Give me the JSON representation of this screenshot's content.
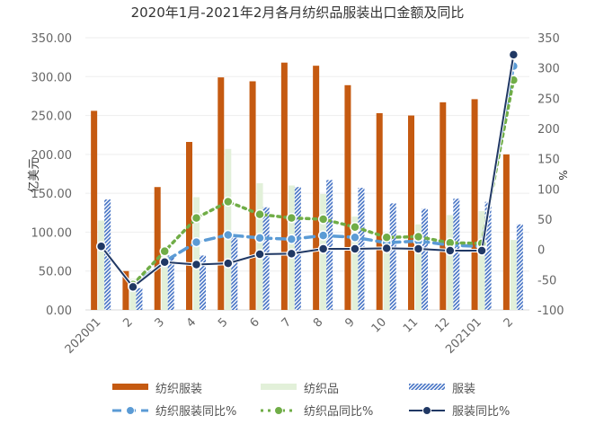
{
  "chart_data": {
    "type": "bar",
    "title": "2020年1月-2021年2月各月纺织品服装出口金额及同比",
    "ylabel": "亿美元",
    "y2label": "%",
    "ylim": [
      0,
      350
    ],
    "y2lim": [
      -100,
      350
    ],
    "yticks": [
      "0.00",
      "50.00",
      "100.00",
      "150.00",
      "200.00",
      "250.00",
      "300.00",
      "350.00"
    ],
    "y2ticks": [
      "-100",
      "-50",
      "0",
      "50",
      "100",
      "150",
      "200",
      "250",
      "300",
      "350"
    ],
    "categories": [
      "202001",
      "2",
      "3",
      "4",
      "5",
      "6",
      "7",
      "8",
      "9",
      "10",
      "11",
      "12",
      "202101",
      "2"
    ],
    "bars": [
      {
        "name": "纺织服装",
        "color": "#C55A11",
        "values": [
          256,
          50,
          158,
          216,
          299,
          294,
          318,
          314,
          289,
          253,
          250,
          267,
          271,
          200
        ]
      },
      {
        "name": "纺织品",
        "color": "#E2F0D9",
        "values": [
          115,
          40,
          70,
          145,
          207,
          163,
          160,
          149,
          120,
          100,
          110,
          122,
          127,
          90
        ]
      },
      {
        "name": "服装",
        "color": "#4472C4",
        "values": [
          142,
          28,
          70,
          70,
          93,
          132,
          158,
          167,
          157,
          137,
          130,
          143,
          139,
          110
        ]
      }
    ],
    "lines": [
      {
        "name": "纺织服装同比%",
        "color": "#5B9BD5",
        "style": "dashed",
        "values": [
          null,
          -60,
          -20,
          12,
          24,
          19,
          17,
          23,
          20,
          11,
          14,
          7,
          5,
          303
        ]
      },
      {
        "name": "纺织品同比%",
        "color": "#70AD47",
        "style": "dotted",
        "values": [
          null,
          -58,
          -3,
          52,
          79,
          58,
          52,
          50,
          37,
          20,
          21,
          11,
          10,
          280
        ]
      },
      {
        "name": "服装同比%",
        "color": "#203864",
        "style": "solid",
        "values": [
          5,
          -62,
          -21,
          -25,
          -23,
          -8,
          -7,
          1,
          1,
          2,
          1,
          -2,
          -2,
          322
        ]
      }
    ],
    "legend": "bottom"
  }
}
